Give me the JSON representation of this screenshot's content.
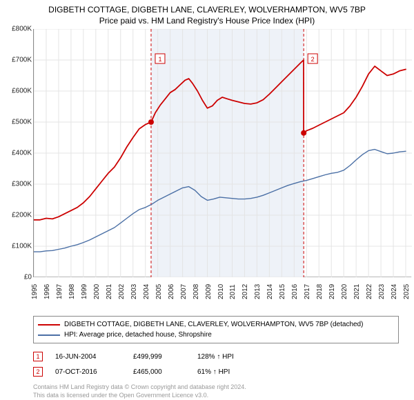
{
  "title_line1": "DIGBETH COTTAGE, DIGBETH LANE, CLAVERLEY, WOLVERHAMPTON, WV5 7BP",
  "title_line2": "Price paid vs. HM Land Registry's House Price Index (HPI)",
  "chart": {
    "type": "line",
    "background_color": "#ffffff",
    "grid_color": "#e4e4e4",
    "shaded_band_color": "#eef2f8",
    "shaded_band_x": [
      2004.46,
      2016.77
    ],
    "marker_line_color": "#cc0000",
    "marker_line_dash": "4,3",
    "xlim": [
      1995,
      2025.5
    ],
    "ylim": [
      0,
      800000
    ],
    "ytick_step": 100000,
    "yticks": [
      "£0",
      "£100K",
      "£200K",
      "£300K",
      "£400K",
      "£500K",
      "£600K",
      "£700K",
      "£800K"
    ],
    "xticks": [
      1995,
      1996,
      1997,
      1998,
      1999,
      2000,
      2001,
      2002,
      2003,
      2004,
      2005,
      2006,
      2007,
      2008,
      2009,
      2010,
      2011,
      2012,
      2013,
      2014,
      2015,
      2016,
      2017,
      2018,
      2019,
      2020,
      2021,
      2022,
      2023,
      2024,
      2025
    ],
    "axis_label_fontsize": 10,
    "series": [
      {
        "name": "property",
        "label": "DIGBETH COTTAGE, DIGBETH LANE, CLAVERLEY, WOLVERHAMPTON, WV5 7BP (detached)",
        "color": "#cc0000",
        "line_width": 1.8,
        "data": [
          [
            1995.0,
            185000
          ],
          [
            1995.5,
            185000
          ],
          [
            1996.0,
            190000
          ],
          [
            1996.5,
            188000
          ],
          [
            1997.0,
            195000
          ],
          [
            1997.5,
            205000
          ],
          [
            1998.0,
            215000
          ],
          [
            1998.5,
            225000
          ],
          [
            1999.0,
            240000
          ],
          [
            1999.5,
            260000
          ],
          [
            2000.0,
            285000
          ],
          [
            2000.5,
            310000
          ],
          [
            2001.0,
            335000
          ],
          [
            2001.5,
            355000
          ],
          [
            2002.0,
            385000
          ],
          [
            2002.5,
            420000
          ],
          [
            2003.0,
            450000
          ],
          [
            2003.5,
            478000
          ],
          [
            2004.0,
            492000
          ],
          [
            2004.46,
            499999
          ],
          [
            2004.8,
            530000
          ],
          [
            2005.2,
            555000
          ],
          [
            2005.6,
            575000
          ],
          [
            2006.0,
            595000
          ],
          [
            2006.4,
            605000
          ],
          [
            2006.8,
            620000
          ],
          [
            2007.2,
            635000
          ],
          [
            2007.5,
            640000
          ],
          [
            2007.8,
            625000
          ],
          [
            2008.2,
            600000
          ],
          [
            2008.6,
            570000
          ],
          [
            2009.0,
            545000
          ],
          [
            2009.4,
            552000
          ],
          [
            2009.8,
            570000
          ],
          [
            2010.2,
            580000
          ],
          [
            2010.6,
            575000
          ],
          [
            2011.0,
            570000
          ],
          [
            2011.5,
            565000
          ],
          [
            2012.0,
            560000
          ],
          [
            2012.5,
            558000
          ],
          [
            2013.0,
            562000
          ],
          [
            2013.5,
            572000
          ],
          [
            2014.0,
            590000
          ],
          [
            2014.5,
            610000
          ],
          [
            2015.0,
            630000
          ],
          [
            2015.5,
            650000
          ],
          [
            2016.0,
            670000
          ],
          [
            2016.5,
            690000
          ],
          [
            2016.76,
            700000
          ],
          [
            2016.77,
            465000
          ],
          [
            2017.0,
            472000
          ],
          [
            2017.5,
            480000
          ],
          [
            2018.0,
            490000
          ],
          [
            2018.5,
            500000
          ],
          [
            2019.0,
            510000
          ],
          [
            2019.5,
            520000
          ],
          [
            2020.0,
            530000
          ],
          [
            2020.5,
            552000
          ],
          [
            2021.0,
            580000
          ],
          [
            2021.5,
            615000
          ],
          [
            2022.0,
            655000
          ],
          [
            2022.5,
            680000
          ],
          [
            2023.0,
            665000
          ],
          [
            2023.5,
            650000
          ],
          [
            2024.0,
            655000
          ],
          [
            2024.5,
            665000
          ],
          [
            2025.0,
            670000
          ]
        ]
      },
      {
        "name": "hpi",
        "label": "HPI: Average price, detached house, Shropshire",
        "color": "#4a6fa5",
        "line_width": 1.4,
        "data": [
          [
            1995.0,
            82000
          ],
          [
            1995.5,
            82000
          ],
          [
            1996.0,
            85000
          ],
          [
            1996.5,
            86000
          ],
          [
            1997.0,
            90000
          ],
          [
            1997.5,
            94000
          ],
          [
            1998.0,
            100000
          ],
          [
            1998.5,
            105000
          ],
          [
            1999.0,
            112000
          ],
          [
            1999.5,
            120000
          ],
          [
            2000.0,
            130000
          ],
          [
            2000.5,
            140000
          ],
          [
            2001.0,
            150000
          ],
          [
            2001.5,
            160000
          ],
          [
            2002.0,
            175000
          ],
          [
            2002.5,
            190000
          ],
          [
            2003.0,
            205000
          ],
          [
            2003.5,
            218000
          ],
          [
            2004.0,
            225000
          ],
          [
            2004.5,
            235000
          ],
          [
            2005.0,
            248000
          ],
          [
            2005.5,
            258000
          ],
          [
            2006.0,
            268000
          ],
          [
            2006.5,
            278000
          ],
          [
            2007.0,
            288000
          ],
          [
            2007.5,
            292000
          ],
          [
            2008.0,
            280000
          ],
          [
            2008.5,
            260000
          ],
          [
            2009.0,
            248000
          ],
          [
            2009.5,
            252000
          ],
          [
            2010.0,
            258000
          ],
          [
            2010.5,
            256000
          ],
          [
            2011.0,
            254000
          ],
          [
            2011.5,
            252000
          ],
          [
            2012.0,
            252000
          ],
          [
            2012.5,
            254000
          ],
          [
            2013.0,
            258000
          ],
          [
            2013.5,
            264000
          ],
          [
            2014.0,
            272000
          ],
          [
            2014.5,
            280000
          ],
          [
            2015.0,
            288000
          ],
          [
            2015.5,
            296000
          ],
          [
            2016.0,
            302000
          ],
          [
            2016.5,
            308000
          ],
          [
            2017.0,
            312000
          ],
          [
            2017.5,
            318000
          ],
          [
            2018.0,
            324000
          ],
          [
            2018.5,
            330000
          ],
          [
            2019.0,
            335000
          ],
          [
            2019.5,
            338000
          ],
          [
            2020.0,
            345000
          ],
          [
            2020.5,
            360000
          ],
          [
            2021.0,
            378000
          ],
          [
            2021.5,
            395000
          ],
          [
            2022.0,
            408000
          ],
          [
            2022.5,
            412000
          ],
          [
            2023.0,
            405000
          ],
          [
            2023.5,
            398000
          ],
          [
            2024.0,
            400000
          ],
          [
            2024.5,
            404000
          ],
          [
            2025.0,
            406000
          ]
        ]
      }
    ],
    "markers": [
      {
        "n": "1",
        "x": 2004.46,
        "y": 499999,
        "box_y": 720000
      },
      {
        "n": "2",
        "x": 2016.77,
        "y": 465000,
        "box_y": 720000
      }
    ],
    "marker_dot_color": "#cc0000",
    "marker_dot_radius": 4
  },
  "transactions": [
    {
      "n": "1",
      "date": "16-JUN-2004",
      "price": "£499,999",
      "pct": "128% ↑ HPI"
    },
    {
      "n": "2",
      "date": "07-OCT-2016",
      "price": "£465,000",
      "pct": "61% ↑ HPI"
    }
  ],
  "footer_line1": "Contains HM Land Registry data © Crown copyright and database right 2024.",
  "footer_line2": "This data is licensed under the Open Government Licence v3.0.",
  "colors": {
    "marker_border": "#cc0000",
    "text": "#222222",
    "footer": "#999999"
  }
}
